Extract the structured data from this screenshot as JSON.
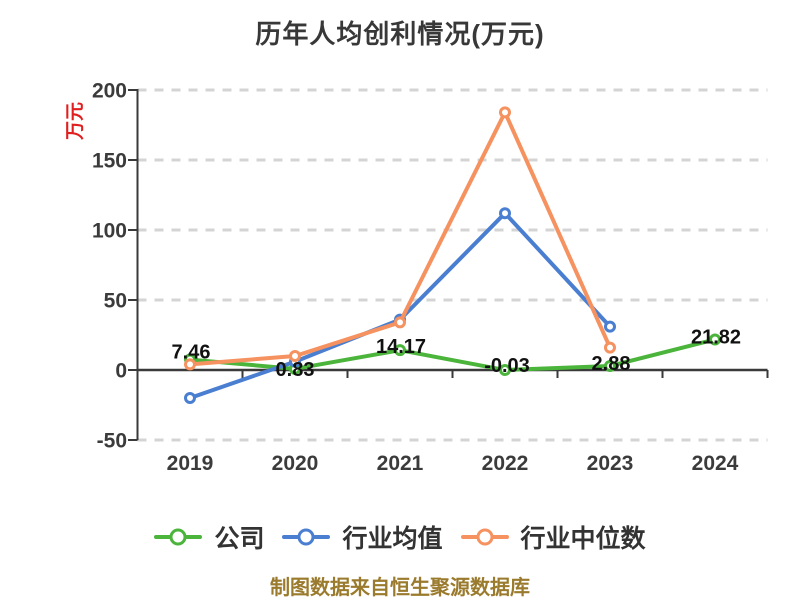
{
  "chart_data": {
    "type": "line",
    "title": "历年人均创利情况(万元)",
    "y_axis": {
      "unit_label": "万元",
      "unit_label_color": "#e02020",
      "ticks": [
        200,
        150,
        100,
        50,
        0,
        -50
      ],
      "range": [
        -50,
        200
      ]
    },
    "x_categories": [
      "2019",
      "2020",
      "2021",
      "2022",
      "2023",
      "2024"
    ],
    "grid": {
      "horizontal_dashed": true,
      "color": "#d4d4d4"
    },
    "axis_color": "#3a3a3a",
    "tick_label_color": "#3b3b3b",
    "data_label_color": "#111111",
    "series": [
      {
        "key": "company",
        "name": "公司",
        "color": "#4bb43b",
        "values": [
          7.46,
          0.83,
          14.17,
          -0.03,
          2.88,
          21.82
        ],
        "point_labels": [
          "7.46",
          "0.83",
          "14.17",
          "-0.03",
          "2.88",
          "21.82"
        ]
      },
      {
        "key": "industry-average",
        "name": "行业均值",
        "color": "#4a7ed1",
        "values": [
          -20,
          6,
          36,
          112,
          31,
          null
        ]
      },
      {
        "key": "industry-median",
        "name": "行业中位数",
        "color": "#f59260",
        "values": [
          4,
          10,
          34,
          184,
          16,
          null
        ]
      }
    ],
    "legend_position": "bottom",
    "source_note": "制图数据来自恒生聚源数据库"
  }
}
